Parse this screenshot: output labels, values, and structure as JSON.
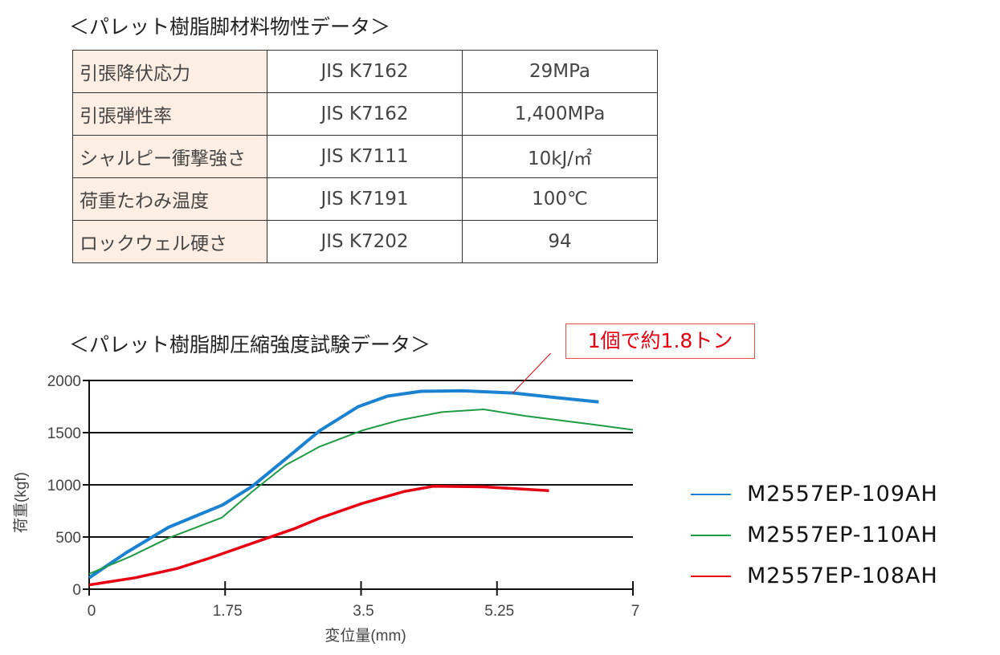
{
  "table_title": "＜パレット樹脂脚材料物性データ＞",
  "table": {
    "rows": [
      [
        "引張降伏応力",
        "JIS K7162",
        "29MPa"
      ],
      [
        "引張弾性率",
        "JIS K7162",
        "1,400MPa"
      ],
      [
        "シャルピー衝撃強さ",
        "JIS K7111",
        "10kJ/㎡"
      ],
      [
        "荷重たわみ温度",
        "JIS K7191",
        "100℃"
      ],
      [
        "ロックウェル硬さ",
        "JIS K7202",
        "94"
      ]
    ]
  },
  "callout": "1個で約1.8トン",
  "colors": {
    "blue": "#1a82d0",
    "green": "#1f9a45",
    "red": "#e60012",
    "callout": "#e60012",
    "header_cell": "#fdeee4"
  },
  "chart_data": {
    "type": "line",
    "title": "＜パレット樹脂脚圧縮強度試験データ＞",
    "xlabel": "変位量(mm)",
    "ylabel": "荷重(kgf)",
    "xlim": [
      0,
      7
    ],
    "ylim": [
      0,
      2000
    ],
    "xticks": [
      "0",
      "1.75",
      "3.5",
      "5.25",
      "7"
    ],
    "yticks": [
      "0",
      "500",
      "1000",
      "1500",
      "2000"
    ],
    "grid": "horizontal",
    "legend_position": "right",
    "series": [
      {
        "name": "M2557EP-109AH",
        "color": "#1a82d0",
        "x": [
          0,
          0.48,
          1.02,
          1.72,
          2.1,
          2.64,
          2.97,
          3.46,
          3.84,
          4.27,
          4.81,
          5.46,
          6.0,
          6.56
        ],
        "y": [
          109,
          351,
          592,
          808,
          986,
          1316,
          1520,
          1748,
          1850,
          1896,
          1901,
          1880,
          1837,
          1794
        ]
      },
      {
        "name": "M2557EP-110AH",
        "color": "#1f9a45",
        "x": [
          0,
          0.53,
          1.02,
          1.71,
          2.1,
          2.53,
          2.97,
          3.51,
          4.0,
          4.54,
          5.08,
          5.62,
          6.44,
          7.0
        ],
        "y": [
          147,
          313,
          490,
          686,
          935,
          1189,
          1367,
          1520,
          1621,
          1697,
          1723,
          1659,
          1583,
          1527
        ]
      },
      {
        "name": "M2557EP-108AH",
        "color": "#e60012",
        "x": [
          0,
          0.59,
          1.13,
          1.56,
          2.1,
          2.64,
          2.97,
          3.51,
          4.05,
          4.43,
          5.08,
          5.92
        ],
        "y": [
          41,
          109,
          198,
          300,
          440,
          579,
          681,
          821,
          935,
          986,
          981,
          945
        ]
      }
    ]
  }
}
